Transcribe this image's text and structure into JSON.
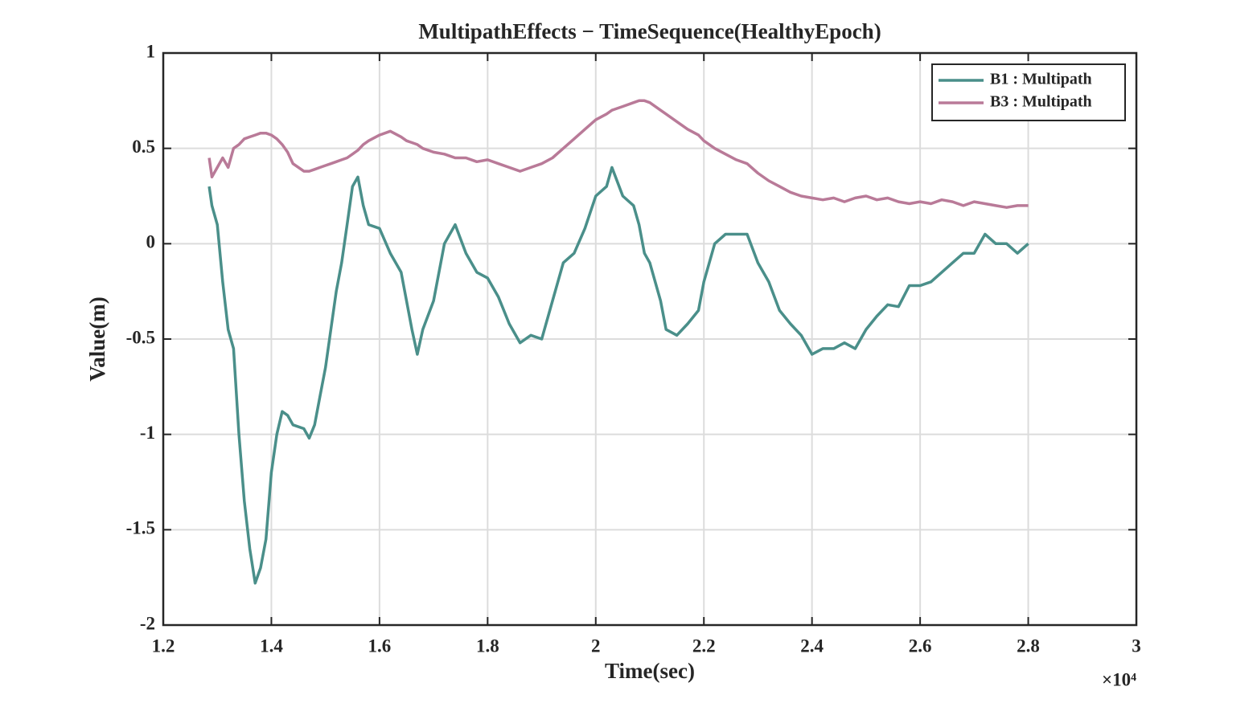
{
  "chart_data": {
    "type": "line",
    "title": "MultipathEffects − TimeSequence(HealthyEpoch)",
    "x_label": "Time(sec)",
    "y_label": "Value(m)",
    "x_multiplier": "×10⁴",
    "x": [
      1.285,
      1.29,
      1.3,
      1.31,
      1.32,
      1.33,
      1.34,
      1.35,
      1.36,
      1.37,
      1.38,
      1.39,
      1.4,
      1.41,
      1.42,
      1.43,
      1.44,
      1.46,
      1.47,
      1.48,
      1.49,
      1.5,
      1.51,
      1.52,
      1.53,
      1.54,
      1.55,
      1.56,
      1.57,
      1.58,
      1.6,
      1.62,
      1.64,
      1.65,
      1.66,
      1.67,
      1.68,
      1.7,
      1.72,
      1.74,
      1.76,
      1.78,
      1.8,
      1.82,
      1.84,
      1.86,
      1.88,
      1.9,
      1.92,
      1.94,
      1.96,
      1.98,
      2.0,
      2.02,
      2.03,
      2.05,
      2.07,
      2.08,
      2.09,
      2.1,
      2.12,
      2.13,
      2.15,
      2.17,
      2.19,
      2.2,
      2.22,
      2.24,
      2.26,
      2.28,
      2.3,
      2.32,
      2.34,
      2.36,
      2.38,
      2.4,
      2.42,
      2.44,
      2.46,
      2.48,
      2.5,
      2.52,
      2.54,
      2.56,
      2.58,
      2.6,
      2.62,
      2.64,
      2.66,
      2.68,
      2.7,
      2.72,
      2.74,
      2.76,
      2.78,
      2.8
    ],
    "series": [
      {
        "name": "B1 : Multipath",
        "color": "#4a8f8a",
        "values": [
          0.3,
          0.2,
          0.1,
          -0.2,
          -0.45,
          -0.55,
          -1.0,
          -1.35,
          -1.6,
          -1.78,
          -1.7,
          -1.55,
          -1.2,
          -1.0,
          -0.88,
          -0.9,
          -0.95,
          -0.97,
          -1.02,
          -0.95,
          -0.8,
          -0.65,
          -0.45,
          -0.25,
          -0.1,
          0.1,
          0.3,
          0.35,
          0.2,
          0.1,
          0.08,
          -0.05,
          -0.15,
          -0.3,
          -0.45,
          -0.58,
          -0.45,
          -0.3,
          0.0,
          0.1,
          -0.05,
          -0.15,
          -0.18,
          -0.28,
          -0.42,
          -0.52,
          -0.48,
          -0.5,
          -0.3,
          -0.1,
          -0.05,
          0.08,
          0.25,
          0.3,
          0.4,
          0.25,
          0.2,
          0.1,
          -0.05,
          -0.1,
          -0.3,
          -0.45,
          -0.48,
          -0.42,
          -0.35,
          -0.2,
          0.0,
          0.05,
          0.05,
          0.05,
          -0.1,
          -0.2,
          -0.35,
          -0.42,
          -0.48,
          -0.58,
          -0.55,
          -0.55,
          -0.52,
          -0.55,
          -0.45,
          -0.38,
          -0.32,
          -0.33,
          -0.22,
          -0.22,
          -0.2,
          -0.15,
          -0.1,
          -0.05,
          -0.05,
          0.05,
          0.0,
          0.0,
          -0.05,
          0.0
        ]
      },
      {
        "name": "B3 : Multipath",
        "color": "#b97a98",
        "values": [
          0.45,
          0.35,
          0.4,
          0.45,
          0.4,
          0.5,
          0.52,
          0.55,
          0.56,
          0.57,
          0.58,
          0.58,
          0.57,
          0.55,
          0.52,
          0.48,
          0.42,
          0.38,
          0.38,
          0.39,
          0.4,
          0.41,
          0.42,
          0.43,
          0.44,
          0.45,
          0.47,
          0.49,
          0.52,
          0.54,
          0.57,
          0.59,
          0.56,
          0.54,
          0.53,
          0.52,
          0.5,
          0.48,
          0.47,
          0.45,
          0.45,
          0.43,
          0.44,
          0.42,
          0.4,
          0.38,
          0.4,
          0.42,
          0.45,
          0.5,
          0.55,
          0.6,
          0.65,
          0.68,
          0.7,
          0.72,
          0.74,
          0.75,
          0.75,
          0.74,
          0.7,
          0.68,
          0.64,
          0.6,
          0.57,
          0.54,
          0.5,
          0.47,
          0.44,
          0.42,
          0.37,
          0.33,
          0.3,
          0.27,
          0.25,
          0.24,
          0.23,
          0.24,
          0.22,
          0.24,
          0.25,
          0.23,
          0.24,
          0.22,
          0.21,
          0.22,
          0.21,
          0.23,
          0.22,
          0.2,
          0.22,
          0.21,
          0.2,
          0.19,
          0.2,
          0.2
        ]
      }
    ],
    "xlim": [
      1.2,
      3
    ],
    "xticks": [
      1.2,
      1.4,
      1.6,
      1.8,
      2,
      2.2,
      2.4,
      2.6,
      2.8,
      3
    ],
    "ylim": [
      -2,
      1
    ],
    "yticks": [
      -2,
      -1.5,
      -1,
      -0.5,
      0,
      0.5,
      1
    ],
    "grid": true,
    "legend": "top-right"
  }
}
